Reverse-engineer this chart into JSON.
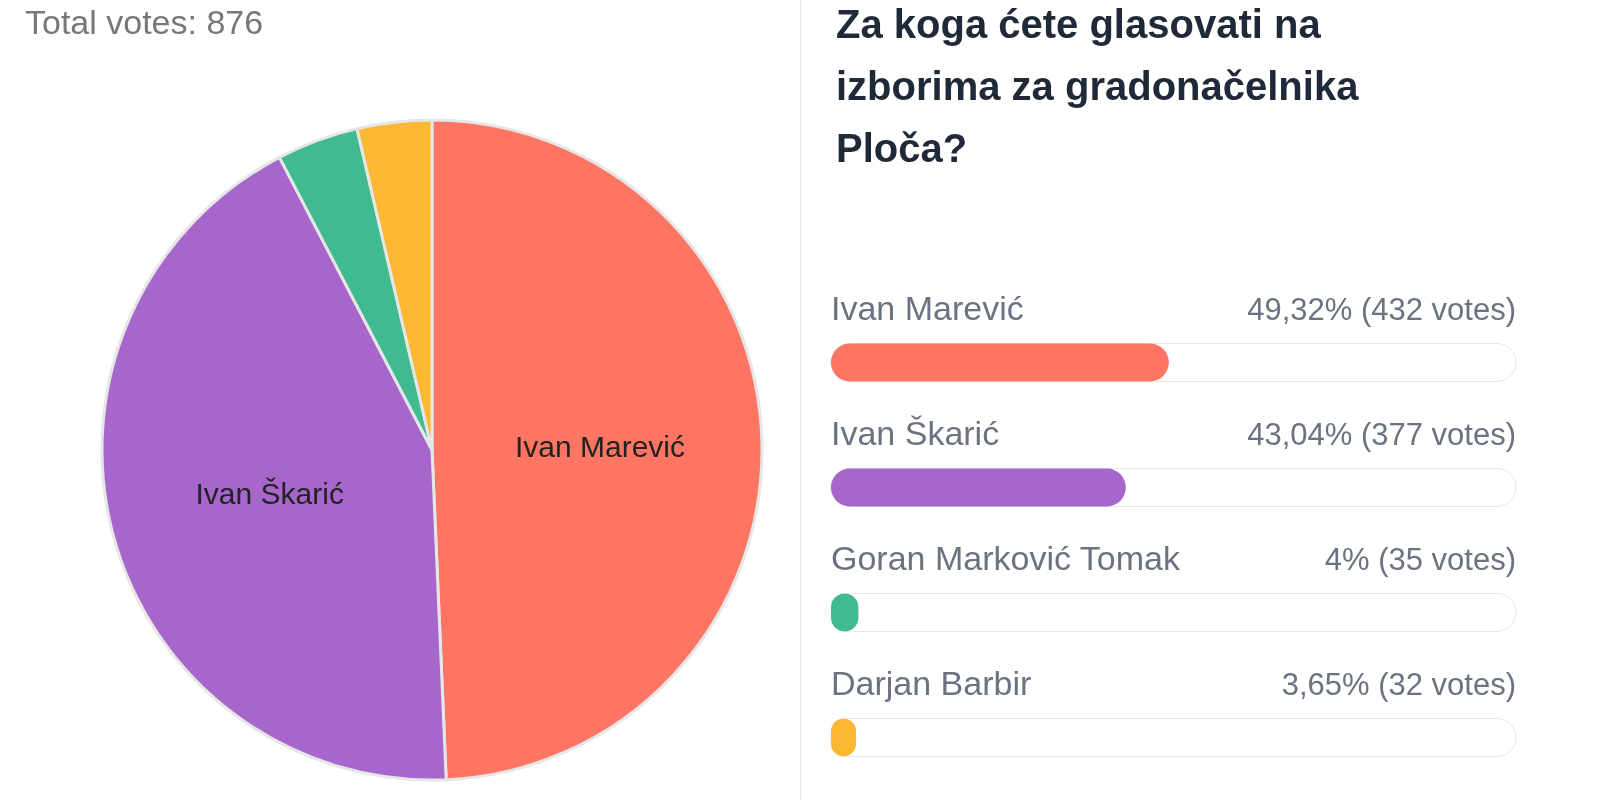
{
  "chart_data": [
    {
      "type": "pie",
      "title": "Total votes: 876",
      "categories": [
        "Ivan Marević",
        "Ivan Škarić",
        null,
        null
      ],
      "values": [
        49.32,
        43.04,
        4,
        3.65
      ],
      "colors": [
        "#fe7563",
        "#a666cc",
        "#40bb8f",
        "#fdb833"
      ],
      "legend": false
    },
    {
      "type": "bar",
      "orientation": "horizontal",
      "title": "Za koga ćete glasovati na izborima za gradonačelnika Ploča?",
      "categories": [
        "Ivan Marević",
        "Ivan Škarić",
        "Goran Marković Tomak",
        "Darjan Barbir"
      ],
      "values": [
        49.32,
        43.04,
        4,
        3.65
      ],
      "colors": [
        "#fe7563",
        "#a666cc",
        "#40bb8f",
        "#fdb833"
      ],
      "value_labels": [
        "49,32% (432 votes)",
        "43,04% (377 votes)",
        "4% (35 votes)",
        "3,65% (32 votes)"
      ],
      "xlim": [
        0,
        100
      ],
      "tick_labels": false,
      "legend": false
    }
  ]
}
